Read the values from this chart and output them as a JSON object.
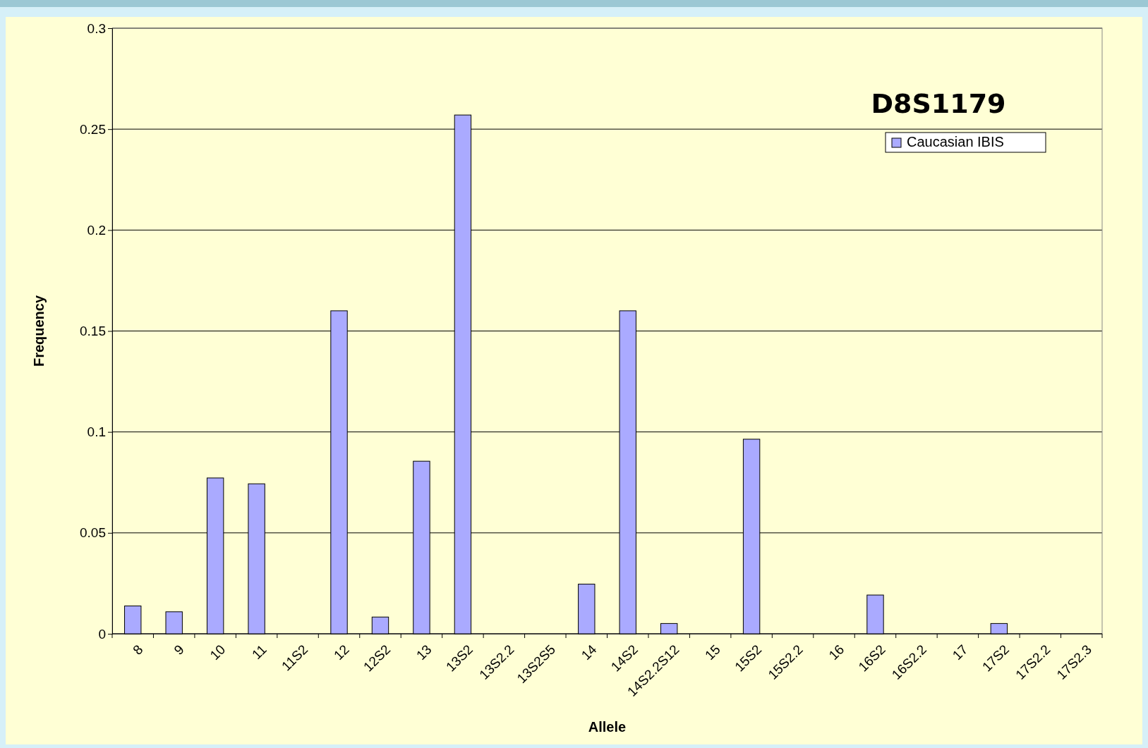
{
  "chart_data": {
    "type": "bar",
    "title": "D8S1179",
    "xlabel": "Allele",
    "ylabel": "Frequency",
    "categories": [
      "8",
      "9",
      "10",
      "11",
      "11S2",
      "12",
      "12S2",
      "13",
      "13S2",
      "13S2.2",
      "13S2S5",
      "14",
      "14S2",
      "14S2.2S12",
      "15",
      "15S2",
      "15S2.2",
      "16",
      "16S2",
      "16S2.2",
      "17",
      "17S2",
      "17S2.2",
      "17S2.3"
    ],
    "series": [
      {
        "name": "Caucasian IBIS",
        "color": "#aaaaff",
        "values": [
          0.0138,
          0.0109,
          0.0772,
          0.0743,
          0,
          0.16,
          0.0083,
          0.0855,
          0.257,
          0,
          0,
          0.0246,
          0.16,
          0.0051,
          0,
          0.0964,
          0,
          0,
          0.0192,
          0,
          0,
          0.0051,
          0,
          0
        ]
      }
    ],
    "ylim": [
      0,
      0.3
    ],
    "yticks": [
      0,
      0.05,
      0.1,
      0.15,
      0.2,
      0.25,
      0.3
    ],
    "grid": "y",
    "legend": "top right"
  }
}
